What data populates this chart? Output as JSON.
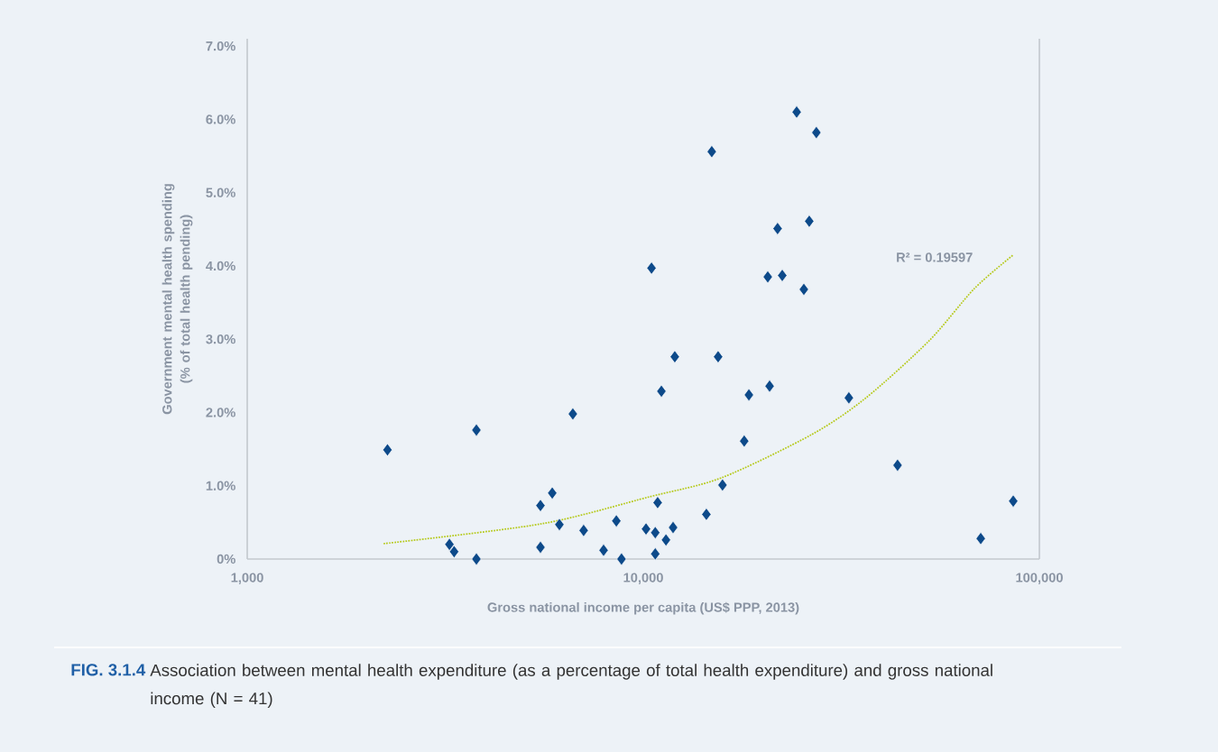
{
  "chart_data": {
    "type": "scatter",
    "xlabel": "Gross national income per capita (US$ PPP, 2013)",
    "ylabel": "Government mental health spending (% of total health pending)",
    "log": "x",
    "xlim": [
      1000,
      100000
    ],
    "ylim": [
      0,
      7.1
    ],
    "xticks": [
      {
        "value": 1000,
        "label": "1,000"
      },
      {
        "value": 10000,
        "label": "10,000"
      },
      {
        "value": 100000,
        "label": "100,000"
      }
    ],
    "yticks": [
      {
        "value": 0,
        "label": "0%"
      },
      {
        "value": 1,
        "label": "1.0%"
      },
      {
        "value": 2,
        "label": "2.0%"
      },
      {
        "value": 3,
        "label": "3.0%"
      },
      {
        "value": 4,
        "label": "4.0%"
      },
      {
        "value": 5,
        "label": "5.0%"
      },
      {
        "value": 6,
        "label": "6.0%"
      },
      {
        "value": 7,
        "label": "7.0%"
      }
    ],
    "series": [
      {
        "marker": "diamond",
        "color": "#0d4a8a",
        "x": [
          2260,
          3240,
          3330,
          3790,
          3790,
          5500,
          5500,
          5890,
          6140,
          6640,
          7070,
          7940,
          8550,
          8810,
          10160,
          10490,
          10720,
          10720,
          10870,
          11110,
          11410,
          11890,
          12010,
          14430,
          14890,
          15450,
          15850,
          17980,
          18480,
          20620,
          20840,
          21830,
          22430,
          24390,
          25430,
          26240,
          27350,
          33040,
          43850,
          71120,
          85900
        ],
        "values": [
          1.49,
          0.2,
          0.1,
          0,
          1.76,
          0.73,
          0.16,
          0.9,
          0.47,
          1.98,
          0.39,
          0.12,
          0.52,
          0,
          0.41,
          3.97,
          0.36,
          0.07,
          0.77,
          2.29,
          0.26,
          0.43,
          2.76,
          0.61,
          5.56,
          2.76,
          1.01,
          1.61,
          2.24,
          3.85,
          2.36,
          4.51,
          3.87,
          6.1,
          3.68,
          4.61,
          5.82,
          2.2,
          1.28,
          0.28,
          0.79
        ]
      },
      {
        "type": "line",
        "color": "#b5c918",
        "line_style": "dotted",
        "x": [
          2210,
          5530,
          10380,
          15780,
          26640,
          36500,
          52700,
          68500,
          85900
        ],
        "values": [
          0.21,
          0.48,
          0.85,
          1.11,
          1.7,
          2.2,
          2.98,
          3.69,
          4.15
        ]
      }
    ],
    "annotations": [
      "R² = 0.19597",
      "FIG. 3.1.4",
      "Association between mental health expenditure (as a percentage of total health expenditure) and gross national income (N = 41)"
    ]
  }
}
